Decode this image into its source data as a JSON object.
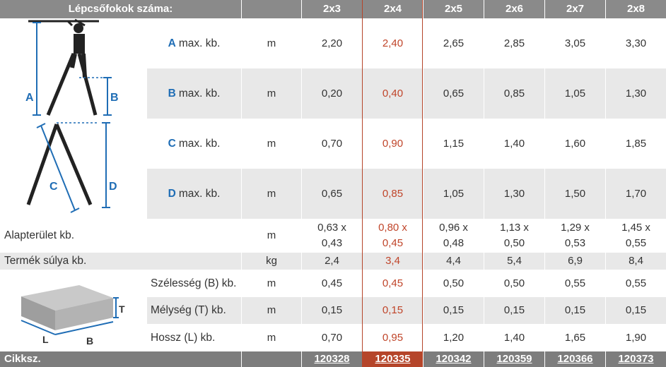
{
  "header": {
    "title": "Lépcsőfokok száma:",
    "columns": [
      "2x3",
      "2x4",
      "2x5",
      "2x6",
      "2x7",
      "2x8"
    ]
  },
  "rows": {
    "a": {
      "letter": "A",
      "label": " max. kb.",
      "unit": "m",
      "values": [
        "2,20",
        "2,40",
        "2,65",
        "2,85",
        "3,05",
        "3,30"
      ]
    },
    "b": {
      "letter": "B",
      "label": " max. kb.",
      "unit": "m",
      "values": [
        "0,20",
        "0,40",
        "0,65",
        "0,85",
        "1,05",
        "1,30"
      ]
    },
    "c": {
      "letter": "C",
      "label": " max. kb.",
      "unit": "m",
      "values": [
        "0,70",
        "0,90",
        "1,15",
        "1,40",
        "1,60",
        "1,85"
      ]
    },
    "d": {
      "letter": "D",
      "label": " max. kb.",
      "unit": "m",
      "values": [
        "0,65",
        "0,85",
        "1,05",
        "1,30",
        "1,50",
        "1,70"
      ]
    },
    "area": {
      "label": "Alapterület kb.",
      "unit": "m",
      "values": [
        [
          "0,63 x",
          "0,43"
        ],
        [
          "0,80 x",
          "0,45"
        ],
        [
          "0,96 x",
          "0,48"
        ],
        [
          "1,13 x",
          "0,50"
        ],
        [
          "1,29 x",
          "0,53"
        ],
        [
          "1,45 x",
          "0,55"
        ]
      ]
    },
    "weight": {
      "label": "Termék súlya kb.",
      "unit": "kg",
      "values": [
        "2,4",
        "3,4",
        "4,4",
        "5,4",
        "6,9",
        "8,4"
      ]
    },
    "width": {
      "label": "Szélesség (B) kb.",
      "unit": "m",
      "values": [
        "0,45",
        "0,45",
        "0,50",
        "0,50",
        "0,55",
        "0,55"
      ]
    },
    "depth": {
      "label": "Mélység (T) kb.",
      "unit": "m",
      "values": [
        "0,15",
        "0,15",
        "0,15",
        "0,15",
        "0,15",
        "0,15"
      ]
    },
    "length": {
      "label": "Hossz (L) kb.",
      "unit": "m",
      "values": [
        "0,70",
        "0,95",
        "1,20",
        "1,40",
        "1,65",
        "1,90"
      ]
    }
  },
  "footer": {
    "title": "Cikksz.",
    "codes": [
      "120328",
      "120335",
      "120342",
      "120359",
      "120366",
      "120373"
    ]
  },
  "diagram": {
    "ladder_labels": [
      "A",
      "B",
      "C",
      "D"
    ],
    "box_labels": [
      "T",
      "L",
      "B"
    ]
  },
  "colors": {
    "header_bg": "#8a8a8a",
    "row_alt": "#e8e8e8",
    "highlight": "#c0452a",
    "letter_blue": "#1f6db5"
  },
  "highlight_column": "2x4"
}
